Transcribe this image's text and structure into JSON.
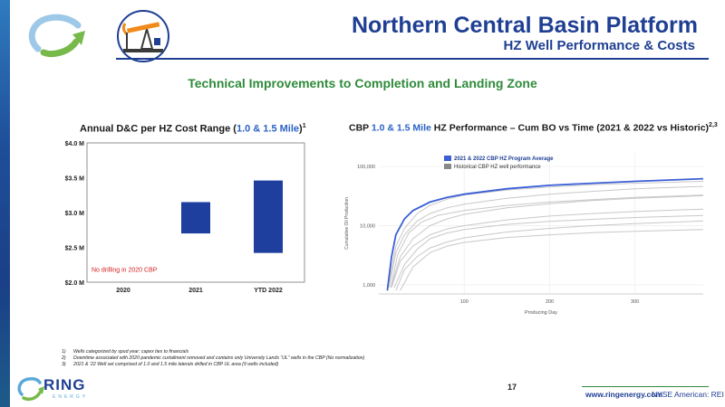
{
  "header": {
    "title": "Northern Central Basin Platform",
    "subtitle": "HZ Well Performance & Costs"
  },
  "section_heading": "Technical Improvements to Completion and Landing Zone",
  "left_chart_title": {
    "prefix": "Annual D&C per HZ Cost Range (",
    "highlight": "1.0 & 1.5 Mile",
    "suffix": ")",
    "sup": "1"
  },
  "right_chart_title": {
    "prefix": "CBP ",
    "highlight": "1.0 & 1.5 Mile",
    "suffix": " HZ Performance – Cum BO vs Time (2021 & 2022 vs Historic)",
    "sup": "2,3"
  },
  "footnotes": [
    {
      "n": "1)",
      "text": "Wells categorized by spud year; capex ties to financials"
    },
    {
      "n": "2)",
      "text": "Downtime associated with 2020 pandemic curtailment removed and contains only University Lands “UL” wells in the CBP (No normalization)"
    },
    {
      "n": "3)",
      "text": "2021 & ’22 Well set comprised of 1.0 and 1.5 mile laterals drilled in CBP UL area (9 wells included)"
    }
  ],
  "page_number": "17",
  "footer": {
    "website": "www.ringenergy.com",
    "ticker": "NYSE American: REI",
    "logo_word": "RING",
    "logo_sub": "ENERGY"
  },
  "colors": {
    "navy": "#1f3f93",
    "green": "#2e8b3a",
    "bar_blue": "#1f3f9e",
    "curve_blue": "#3a5fd6",
    "historic_gray": "#c8c8c8",
    "note_red": "#d22020"
  },
  "chart_data": [
    {
      "type": "bar",
      "subtype": "floating-range",
      "categories": [
        "2020",
        "2021",
        "YTD 2022"
      ],
      "ranges": [
        null,
        [
          2.7,
          3.15
        ],
        [
          2.42,
          3.46
        ]
      ],
      "yticks": [
        "$2.0 M",
        "$2.5 M",
        "$3.0 M",
        "$3.5 M",
        "$4.0 M"
      ],
      "ylim": [
        2.0,
        4.0
      ],
      "annotation": "No drilling in 2020 CBP",
      "grid": false
    },
    {
      "type": "line",
      "yscale": "log",
      "xlabel": "Producing Day",
      "ylabel": "Cumulative Oil Production",
      "xticks": [
        "100",
        "200",
        "300"
      ],
      "yticks": [
        "1,000",
        "10,000",
        "100,000"
      ],
      "xlim": [
        0,
        380
      ],
      "ylim": [
        700,
        170000
      ],
      "legend": [
        "2021 & 2022 CBP HZ Program Average",
        "Historical CBP HZ well performance"
      ],
      "legend_position": "top-left",
      "grid": true,
      "series": [
        {
          "name": "2021 & 2022 CBP HZ Program Average",
          "x": [
            10,
            15,
            20,
            30,
            40,
            60,
            80,
            100,
            150,
            200,
            250,
            300,
            380
          ],
          "y": [
            800,
            3000,
            7000,
            13000,
            18000,
            25000,
            30000,
            34000,
            42000,
            48000,
            52000,
            56000,
            62000
          ]
        },
        {
          "x": [
            12,
            20,
            30,
            45,
            60,
            80,
            100,
            150,
            200,
            250,
            300,
            380
          ],
          "y": [
            900,
            3500,
            7000,
            12000,
            16000,
            20000,
            23000,
            29000,
            34000,
            38000,
            42000,
            46000
          ]
        },
        {
          "x": [
            15,
            25,
            40,
            60,
            80,
            100,
            150,
            200,
            250,
            300,
            380
          ],
          "y": [
            1000,
            3000,
            6000,
            10000,
            13000,
            15500,
            20000,
            23500,
            26500,
            29000,
            32000
          ]
        },
        {
          "x": [
            15,
            25,
            40,
            60,
            80,
            100,
            150,
            200,
            250,
            300,
            380
          ],
          "y": [
            900,
            2500,
            4500,
            7000,
            8800,
            10000,
            12500,
            14500,
            16000,
            17300,
            19000
          ]
        },
        {
          "x": [
            18,
            30,
            45,
            60,
            80,
            100,
            150,
            200,
            250,
            300,
            380
          ],
          "y": [
            900,
            2200,
            4000,
            6000,
            7500,
            8600,
            10500,
            11800,
            12800,
            13700,
            14800
          ]
        },
        {
          "x": [
            20,
            30,
            45,
            60,
            80,
            100,
            150,
            200,
            250,
            300,
            380
          ],
          "y": [
            800,
            1800,
            3000,
            4200,
            5300,
            6200,
            7800,
            9000,
            10000,
            10800,
            12000
          ]
        },
        {
          "x": [
            12,
            20,
            30,
            45,
            60,
            80,
            100,
            150,
            200,
            250,
            300,
            380
          ],
          "y": [
            1100,
            4500,
            9000,
            16000,
            22000,
            28000,
            33000,
            40000,
            45000,
            49000,
            52000,
            56000
          ]
        },
        {
          "x": [
            25,
            40,
            60,
            80,
            100,
            150,
            200,
            250,
            300,
            380
          ],
          "y": [
            800,
            2000,
            3500,
            4500,
            5200,
            6300,
            7000,
            7600,
            8000,
            8600
          ]
        },
        {
          "x": [
            14,
            22,
            35,
            50,
            70,
            100,
            150,
            200,
            250,
            300,
            380
          ],
          "y": [
            900,
            3200,
            7500,
            11500,
            15000,
            18000,
            22000,
            25000,
            27500,
            30000,
            33000
          ]
        }
      ]
    }
  ]
}
